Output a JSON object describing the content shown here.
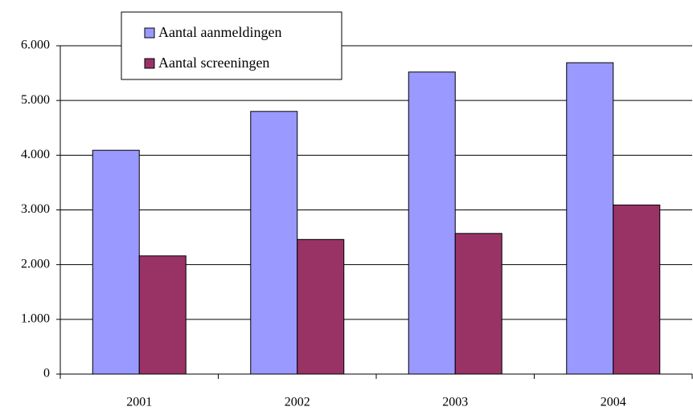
{
  "chart_data": {
    "type": "bar",
    "categories": [
      "2001",
      "2002",
      "2003",
      "2004"
    ],
    "series": [
      {
        "name": "Aantal aanmeldingen",
        "color": "#9999ff",
        "values": [
          4090,
          4800,
          5520,
          5690
        ]
      },
      {
        "name": "Aantal screeningen",
        "color": "#993366",
        "values": [
          2160,
          2460,
          2570,
          3090
        ]
      }
    ],
    "ylim": [
      0,
      6000
    ],
    "yticks": [
      0,
      {
        "value": 1000,
        "label": "1.000"
      },
      {
        "value": 2000,
        "label": "2.000"
      },
      {
        "value": 3000,
        "label": "3.000"
      },
      {
        "value": 4000,
        "label": "4.000"
      },
      {
        "value": 5000,
        "label": "5.000"
      },
      {
        "value": 6000,
        "label": "6.000"
      }
    ],
    "grid": true,
    "legend": "top-left"
  }
}
